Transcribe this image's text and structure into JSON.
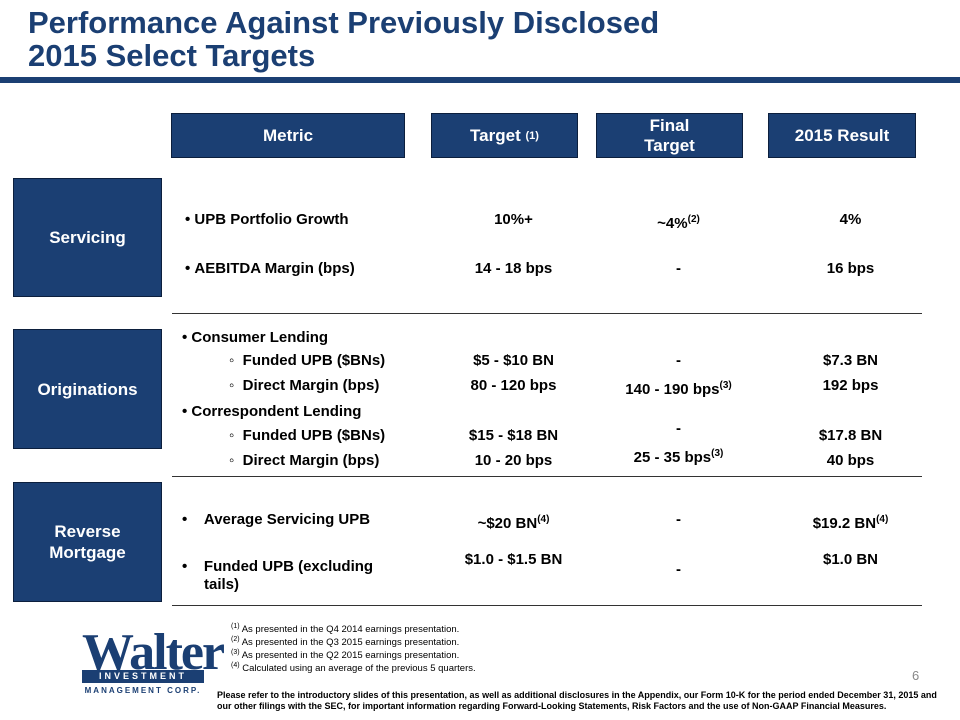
{
  "title_line1": "Performance Against Previously Disclosed",
  "title_line2": "2015 Select Targets",
  "headers": {
    "metric": "Metric",
    "target": "Target",
    "target_note": "(1)",
    "final_target_line1": "Final",
    "final_target_line2": "Target",
    "result": "2015 Result"
  },
  "servicing": {
    "label": "Servicing",
    "rows": [
      {
        "metric": "UPB Portfolio Growth",
        "target": "10%+",
        "final": "~4%",
        "final_note": "(2)",
        "result": "4%"
      },
      {
        "metric": "AEBITDA Margin (bps)",
        "target": "14 - 18 bps",
        "final": "-",
        "result": "16 bps"
      }
    ]
  },
  "originations": {
    "label": "Originations",
    "consumer": "Consumer Lending",
    "consumer_rows": [
      {
        "metric": "Funded UPB ($BNs)",
        "target": "$5 - $10 BN",
        "final": "-",
        "result": "$7.3 BN"
      },
      {
        "metric": "Direct Margin (bps)",
        "target": "80 - 120 bps",
        "final": "140 - 190 bps",
        "final_note": "(3)",
        "result": "192 bps"
      }
    ],
    "correspondent": "Correspondent Lending",
    "correspondent_rows": [
      {
        "metric": "Funded UPB ($BNs)",
        "target": "$15 - $18 BN",
        "final": "-",
        "result": "$17.8 BN"
      },
      {
        "metric": "Direct Margin (bps)",
        "target": "10 - 20 bps",
        "final": "25 - 35 bps",
        "final_note": "(3)",
        "result": "40 bps"
      }
    ]
  },
  "reverse": {
    "label_line1": "Reverse",
    "label_line2": "Mortgage",
    "rows": [
      {
        "metric": "Average Servicing UPB",
        "target": "~$20 BN",
        "target_note": "(4)",
        "final": "-",
        "result": "$19.2 BN",
        "result_note": "(4)"
      },
      {
        "metric_line1": "Funded UPB (excluding",
        "metric_line2": "tails)",
        "target": "$1.0 - $1.5 BN",
        "final": "-",
        "result": "$1.0 BN"
      }
    ]
  },
  "footnotes": [
    {
      "mark": "(1)",
      "text": "As presented in the Q4 2014 earnings presentation."
    },
    {
      "mark": "(2)",
      "text": "As presented in the Q3 2015 earnings presentation."
    },
    {
      "mark": "(3)",
      "text": "As presented in the Q2 2015 earnings presentation."
    },
    {
      "mark": "(4)",
      "text": "Calculated using an average of the previous 5 quarters."
    }
  ],
  "logo": {
    "word": "Walter",
    "band": "INVESTMENT",
    "sub": "MANAGEMENT CORP."
  },
  "page_number": "6",
  "disclaimer": "Please refer to the introductory slides of this presentation, as well as additional disclosures in the Appendix, our Form 10-K for the period ended December 31, 2015 and our other filings with the SEC, for important information regarding Forward-Looking Statements, Risk Factors and the use of Non-GAAP Financial Measures.",
  "colors": {
    "brand_navy": "#1b3f73"
  }
}
